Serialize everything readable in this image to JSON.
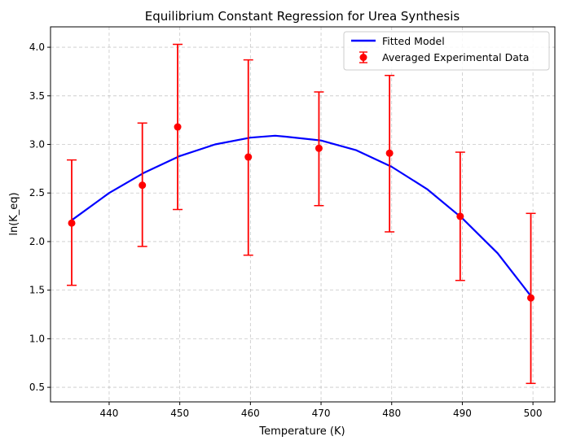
{
  "chart_data": {
    "type": "scatter",
    "title": "Equilibrium Constant Regression for Urea Synthesis",
    "xlabel": "Temperature (K)",
    "ylabel": "ln(K_eq)",
    "xlim": [
      431.7,
      503.1
    ],
    "ylim": [
      0.35,
      4.21
    ],
    "xticks": [
      440,
      450,
      460,
      470,
      480,
      490,
      500
    ],
    "yticks": [
      0.5,
      1.0,
      1.5,
      2.0,
      2.5,
      3.0,
      3.5,
      4.0
    ],
    "xtick_labels": [
      "440",
      "450",
      "460",
      "470",
      "480",
      "490",
      "500"
    ],
    "ytick_labels": [
      "0.5",
      "1.0",
      "1.5",
      "2.0",
      "2.5",
      "3.0",
      "3.5",
      "4.0"
    ],
    "grid": true,
    "legend_position": "top-right",
    "series": [
      {
        "name": "Fitted Model",
        "kind": "line",
        "color": "#0000ff",
        "x": [
          434.7,
          440,
          445,
          450,
          455,
          460,
          463.5,
          465,
          470,
          475,
          480,
          485,
          490,
          495,
          499.7
        ],
        "y": [
          2.22,
          2.5,
          2.71,
          2.88,
          3.0,
          3.07,
          3.09,
          3.08,
          3.04,
          2.94,
          2.77,
          2.54,
          2.24,
          1.88,
          1.44
        ]
      },
      {
        "name": "Averaged Experimental Data",
        "kind": "errorbar",
        "color": "#ff0000",
        "x": [
          434.7,
          444.7,
          449.7,
          459.7,
          469.7,
          479.7,
          489.7,
          499.7
        ],
        "y": [
          2.19,
          2.58,
          3.18,
          2.87,
          2.96,
          2.91,
          2.26,
          1.42
        ],
        "y_low": [
          1.55,
          1.95,
          2.33,
          1.86,
          2.37,
          2.1,
          1.6,
          0.54
        ],
        "y_high": [
          2.84,
          3.22,
          4.03,
          3.87,
          3.54,
          3.71,
          2.92,
          2.29
        ]
      }
    ]
  }
}
